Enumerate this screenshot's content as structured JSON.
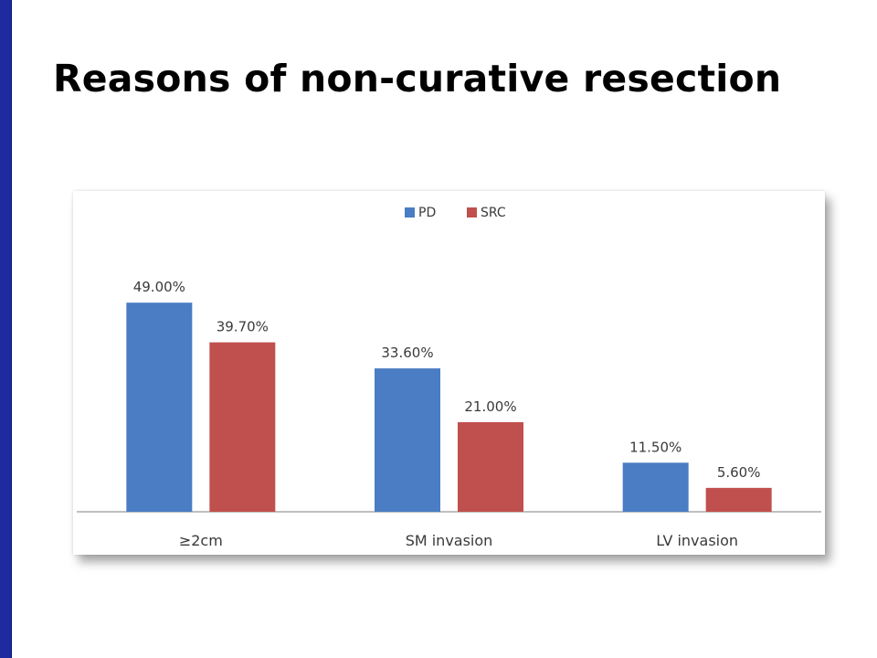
{
  "slide": {
    "title": "Reasons of non-curative resection"
  },
  "colors": {
    "accent_bar": "#1f2aa0",
    "pd": "#4a7dc3",
    "src": "#c0504d"
  },
  "chart_data": {
    "type": "bar",
    "categories": [
      "≥2cm",
      "SM invasion",
      "LV invasion"
    ],
    "series": [
      {
        "name": "PD",
        "values": [
          49.0,
          33.6,
          11.5
        ],
        "labels": [
          "49.00%",
          "33.60%",
          "11.50%"
        ]
      },
      {
        "name": "SRC",
        "values": [
          39.7,
          21.0,
          5.6
        ],
        "labels": [
          "39.70%",
          "21.00%",
          "5.60%"
        ]
      }
    ],
    "title": "",
    "xlabel": "",
    "ylabel": "",
    "ylim": [
      0,
      60
    ],
    "grid": false,
    "legend": "top-center"
  }
}
